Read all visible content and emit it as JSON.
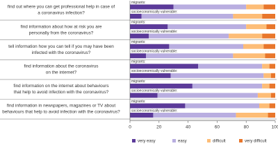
{
  "chart_data": {
    "type": "stacked_bar",
    "categories": [
      [
        "find out where you can get professional help in case of",
        "a coronavirus infection?"
      ],
      [
        "find information about how at risk you are",
        "personally from the coronavirus?"
      ],
      [
        "tell information how you can tell if you may have been",
        "infected with the coronavirus?"
      ],
      [
        "find information about the coronavirus",
        "on the internet?"
      ],
      [
        "find information on the internet about behaviours",
        "that help to avoid infection with the coronavirus?"
      ],
      [
        "find information in newspapers, magazines or TV about",
        "behaviours that help to avoid infection with the coronavirus?"
      ]
    ],
    "groups": [
      "migrants:",
      "socioeconomically vulnerable:"
    ],
    "series": [
      {
        "name": "very easy",
        "color": "#5b3a99",
        "values": [
          [
            30,
            8
          ],
          [
            26,
            13
          ],
          [
            27,
            11
          ],
          [
            47,
            28
          ],
          [
            43,
            19
          ],
          [
            38,
            16
          ]
        ]
      },
      {
        "name": "easy",
        "color": "#b9aee0",
        "values": [
          [
            50,
            63
          ],
          [
            54,
            55
          ],
          [
            51,
            60
          ],
          [
            44,
            64
          ],
          [
            48,
            69
          ],
          [
            51,
            57
          ]
        ]
      },
      {
        "name": "difficult",
        "color": "#fdbd77",
        "values": [
          [
            12,
            20
          ],
          [
            14,
            23
          ],
          [
            14,
            22
          ],
          [
            5,
            5
          ],
          [
            5,
            9
          ],
          [
            7,
            22
          ]
        ]
      },
      {
        "name": "very difficult",
        "color": "#e8762b",
        "values": [
          [
            8,
            9
          ],
          [
            6,
            9
          ],
          [
            8,
            7
          ],
          [
            4,
            3
          ],
          [
            4,
            3
          ],
          [
            4,
            5
          ]
        ]
      }
    ],
    "xlim": [
      0,
      100
    ],
    "xticks": [
      0,
      20,
      40,
      60,
      80,
      100
    ]
  }
}
